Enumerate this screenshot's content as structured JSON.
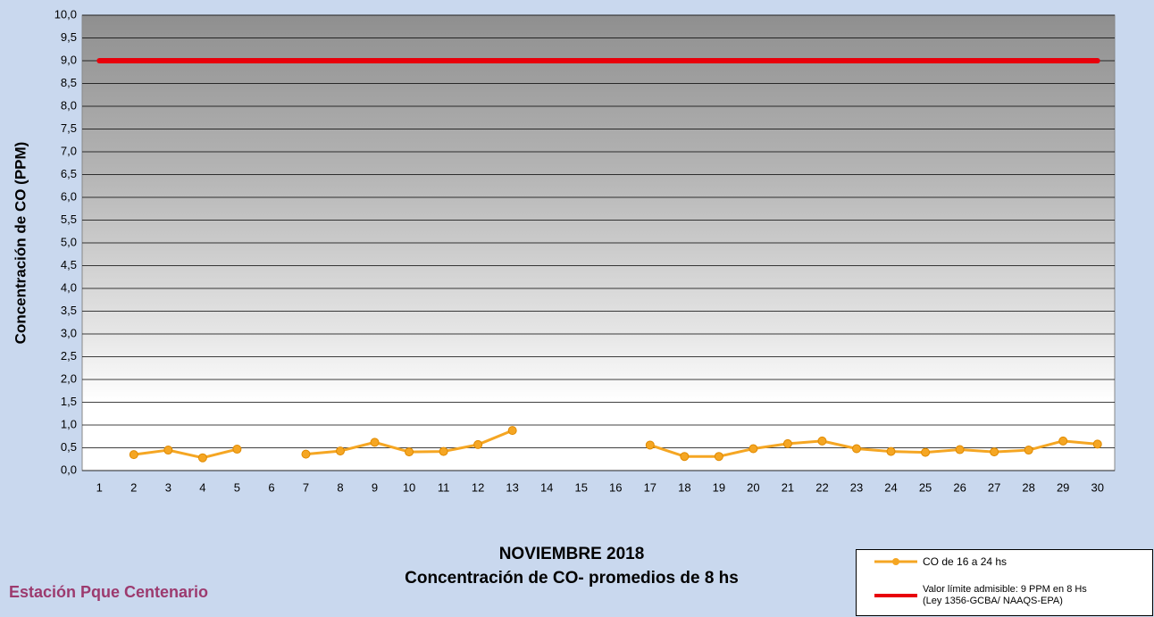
{
  "chart_data": {
    "type": "line",
    "title": "NOVIEMBRE 2018",
    "subtitle": "Concentración de CO- promedios de 8 hs",
    "station": "Estación Pque Centenario",
    "y_label": "Concentración de CO (PPM)",
    "categories": [
      "1",
      "2",
      "3",
      "4",
      "5",
      "6",
      "7",
      "8",
      "9",
      "10",
      "11",
      "12",
      "13",
      "14",
      "15",
      "16",
      "17",
      "18",
      "19",
      "20",
      "21",
      "22",
      "23",
      "24",
      "25",
      "26",
      "27",
      "28",
      "29",
      "30"
    ],
    "series": [
      {
        "name": "CO de 16 a 24 hs",
        "color": "#f5a623",
        "markers": true,
        "values": [
          null,
          0.35,
          0.45,
          0.28,
          0.47,
          null,
          0.36,
          0.43,
          0.62,
          0.41,
          0.42,
          0.57,
          0.88,
          null,
          null,
          null,
          0.56,
          0.31,
          0.31,
          0.48,
          0.59,
          0.65,
          0.48,
          0.42,
          0.4,
          0.46,
          0.41,
          0.45,
          0.65,
          0.58
        ]
      },
      {
        "name": "Valor límite admisible: 9 PPM en 8 Hs (Ley 1356-GCBA/ NAAQS-EPA)",
        "color": "#e8000b",
        "markers": false,
        "values": [
          9,
          9,
          9,
          9,
          9,
          9,
          9,
          9,
          9,
          9,
          9,
          9,
          9,
          9,
          9,
          9,
          9,
          9,
          9,
          9,
          9,
          9,
          9,
          9,
          9,
          9,
          9,
          9,
          9,
          9
        ]
      }
    ],
    "ylim": [
      0,
      10
    ],
    "yticks": [
      {
        "value": 0,
        "label": "0,0"
      },
      {
        "value": 0.5,
        "label": "0,5"
      },
      {
        "value": 1,
        "label": "1,0"
      },
      {
        "value": 1.5,
        "label": "1,5"
      },
      {
        "value": 2,
        "label": "2,0"
      },
      {
        "value": 2.5,
        "label": "2,5"
      },
      {
        "value": 3,
        "label": "3,0"
      },
      {
        "value": 3.5,
        "label": "3,5"
      },
      {
        "value": 4,
        "label": "4,0"
      },
      {
        "value": 4.5,
        "label": "4,5"
      },
      {
        "value": 5,
        "label": "5,0"
      },
      {
        "value": 5.5,
        "label": "5,5"
      },
      {
        "value": 6,
        "label": "6,0"
      },
      {
        "value": 6.5,
        "label": "6,5"
      },
      {
        "value": 7,
        "label": "7,0"
      },
      {
        "value": 7.5,
        "label": "7,5"
      },
      {
        "value": 8,
        "label": "8,0"
      },
      {
        "value": 8.5,
        "label": "8,5"
      },
      {
        "value": 9,
        "label": "9,0"
      },
      {
        "value": 9.5,
        "label": "9,5"
      },
      {
        "value": 10,
        "label": "10,0"
      }
    ],
    "grid": true
  }
}
